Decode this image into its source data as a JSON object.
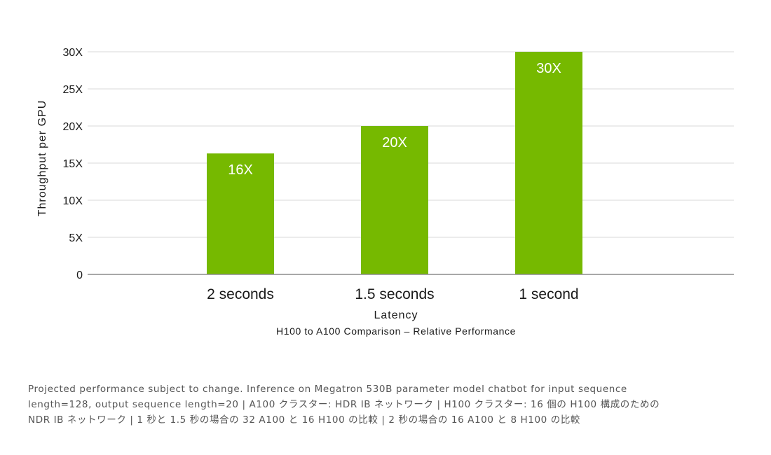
{
  "chart_data": {
    "type": "bar",
    "title": "H100 to A100 Comparison – Relative Performance",
    "xlabel": "Latency",
    "ylabel": "Throughput per GPU",
    "categories": [
      "2 seconds",
      "1.5 seconds",
      "1 second"
    ],
    "values": [
      16.3,
      20,
      30
    ],
    "value_labels": [
      "16X",
      "20X",
      "30X"
    ],
    "ylim": [
      0,
      30
    ],
    "yticks": [
      0,
      5,
      10,
      15,
      20,
      25,
      30
    ],
    "ytick_labels": [
      "0",
      "5X",
      "10X",
      "15X",
      "20X",
      "25X",
      "30X"
    ],
    "grid": true,
    "legend": "none",
    "bar_color": "#76b900"
  },
  "footnote": {
    "lines": [
      "Projected performance subject to change. Inference on Megatron 530B parameter model chatbot for input sequence",
      "length=128, output sequence length=20 | A100 クラスター: HDR IB ネットワーク | H100 クラスター: 16 個の H100 構成のための",
      "NDR IB ネットワーク | 1 秒と 1.5 秒の場合の 32 A100 と 16 H100 の比較 | 2 秒の場合の 16 A100 と 8 H100 の比較"
    ]
  }
}
